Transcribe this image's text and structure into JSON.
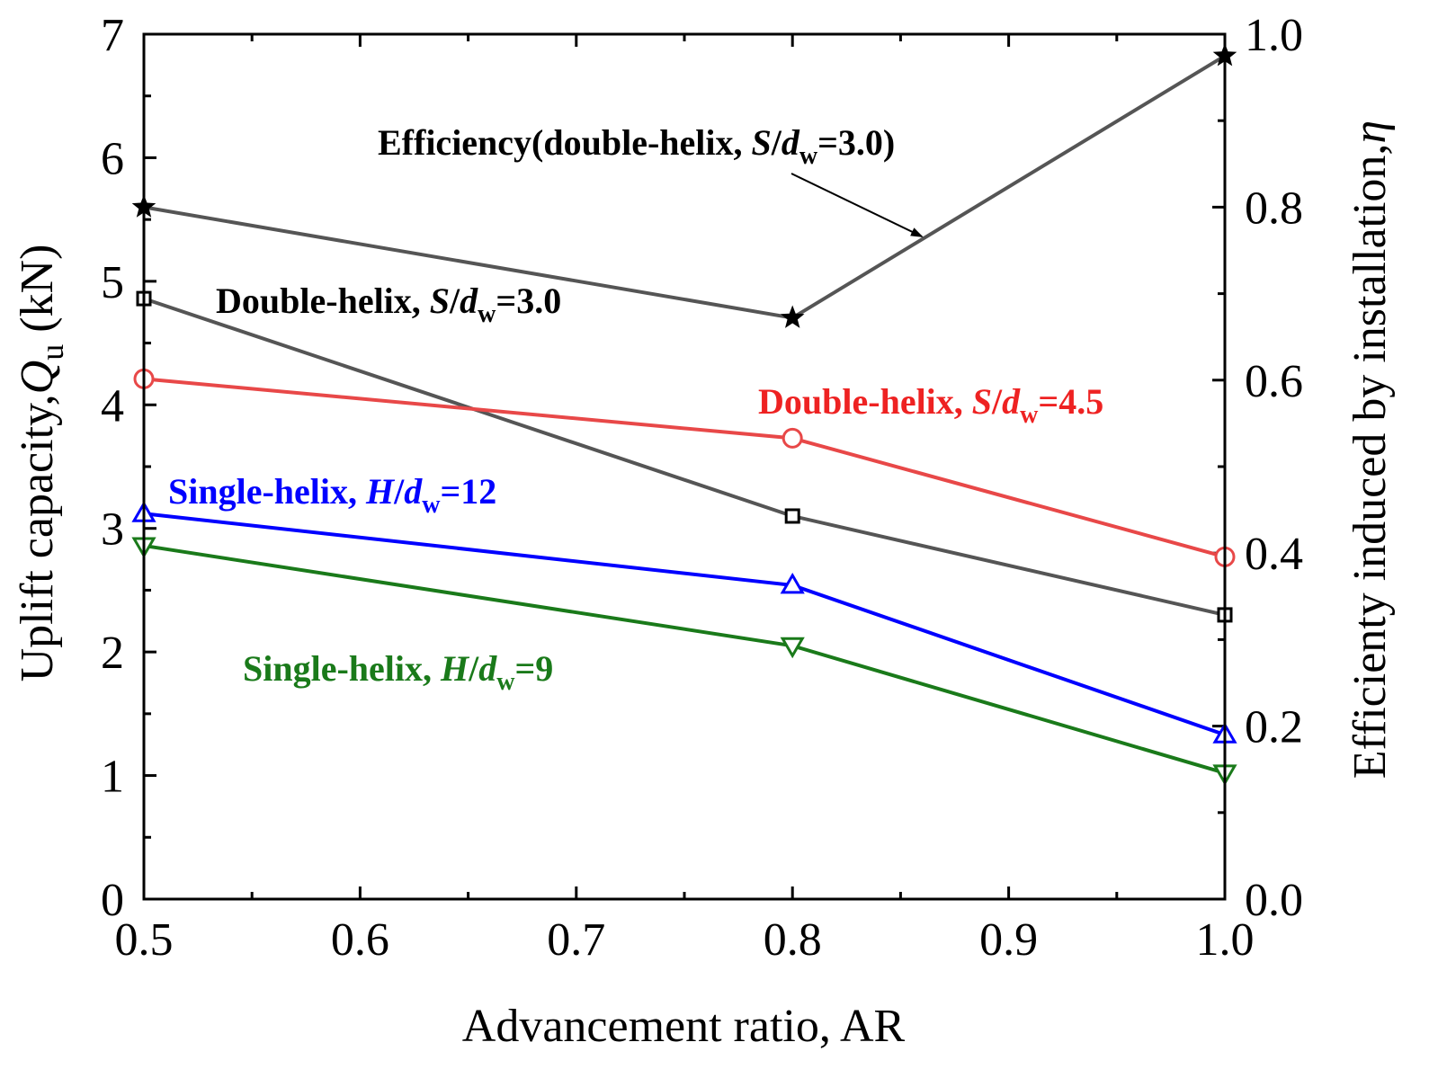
{
  "chart_data": {
    "type": "line",
    "xlabel": "Advancement ratio, AR",
    "ylabel_left": {
      "prefix": "Uplift capacity,",
      "symbol": "Q",
      "sub": "u",
      "suffix": " (kN)"
    },
    "ylabel_right": {
      "prefix": "Efficienty induced by installation,",
      "symbol": "η"
    },
    "xlim": [
      0.5,
      1.0
    ],
    "ylim_left": [
      0,
      7
    ],
    "ylim_right": [
      0.0,
      1.0
    ],
    "x_ticks": [
      0.5,
      0.6,
      0.7,
      0.8,
      0.9,
      1.0
    ],
    "x_tick_labels": [
      "0.5",
      "0.6",
      "0.7",
      "0.8",
      "0.9",
      "1.0"
    ],
    "y_left_ticks": [
      0,
      1,
      2,
      3,
      4,
      5,
      6,
      7
    ],
    "y_left_tick_labels": [
      "0",
      "1",
      "2",
      "3",
      "4",
      "5",
      "6",
      "7"
    ],
    "y_right_ticks": [
      0.0,
      0.2,
      0.4,
      0.6,
      0.8,
      1.0
    ],
    "y_right_tick_labels": [
      "0.0",
      "0.2",
      "0.4",
      "0.6",
      "0.8",
      "1.0"
    ],
    "x": [
      0.5,
      0.8,
      1.0
    ],
    "series": [
      {
        "key": "eff",
        "name": "Efficiency(double-helix, S/dw=3.0)",
        "axis": "right",
        "marker": "star",
        "color": "#555555",
        "values": [
          0.8,
          0.672,
          0.975
        ]
      },
      {
        "key": "dh30",
        "name": "Double-helix, S/dw=3.0",
        "axis": "left",
        "marker": "square",
        "color": "#555555",
        "values": [
          4.86,
          3.1,
          2.3
        ]
      },
      {
        "key": "dh45",
        "name": "Double-helix, S/dw=4.5",
        "axis": "left",
        "marker": "circle",
        "color": "#e84848",
        "values": [
          4.21,
          3.73,
          2.77
        ]
      },
      {
        "key": "sh12",
        "name": "Single-helix, H/dw=12",
        "axis": "left",
        "marker": "triangle-up",
        "color": "#0000ff",
        "values": [
          3.12,
          2.54,
          1.33
        ]
      },
      {
        "key": "sh9",
        "name": "Single-helix, H/dw=9",
        "axis": "left",
        "marker": "triangle-down",
        "color": "#1a7a1a",
        "values": [
          2.86,
          2.05,
          1.02
        ]
      }
    ],
    "annotations": {
      "eff": {
        "text": "Efficiency(double-helix, ",
        "var": "S",
        "slash": "/",
        "d": "d",
        "sub": "w",
        "value": "=3.0)",
        "color": "#000000"
      },
      "dh30": {
        "text": "Double-helix, ",
        "var": "S",
        "slash": "/",
        "d": "d",
        "sub": "w",
        "value": "=3.0",
        "color": "#000000"
      },
      "dh45": {
        "text": "Double-helix, ",
        "var": "S",
        "slash": "/",
        "d": "d",
        "sub": "w",
        "value": "=4.5",
        "color": "#ee2222"
      },
      "sh12": {
        "text": "Single-helix, ",
        "var": "H",
        "slash": "/",
        "d": "d",
        "sub": "w",
        "value": "=12",
        "color": "#0000ff"
      },
      "sh9": {
        "text": "Single-helix, ",
        "var": "H",
        "slash": "/",
        "d": "d",
        "sub": "w",
        "value": "=9",
        "color": "#1a7a1a"
      }
    }
  }
}
